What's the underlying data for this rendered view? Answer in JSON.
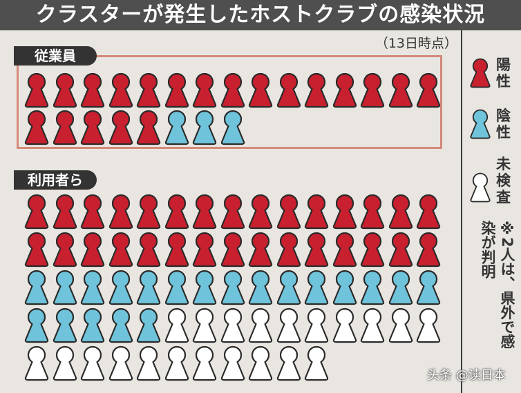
{
  "title": "クラスターが発生したホストクラブの感染状況",
  "as_of": "（13日時点）",
  "sections": {
    "staff": {
      "label": "従業員",
      "positive": 20,
      "negative": 3,
      "untested": 0
    },
    "users": {
      "label": "利用者ら",
      "positive": 30,
      "negative": 20,
      "untested": 21
    }
  },
  "legend": [
    {
      "status": "positive",
      "label": "陽性",
      "color": "#c8202f"
    },
    {
      "status": "negative",
      "label": "陰性",
      "color": "#6fc4dc"
    },
    {
      "status": "untested",
      "label": "未検査",
      "color": "#ffffff"
    }
  ],
  "note": "※2人は、県外で感染が判明",
  "watermark": "头条 @读日本"
}
